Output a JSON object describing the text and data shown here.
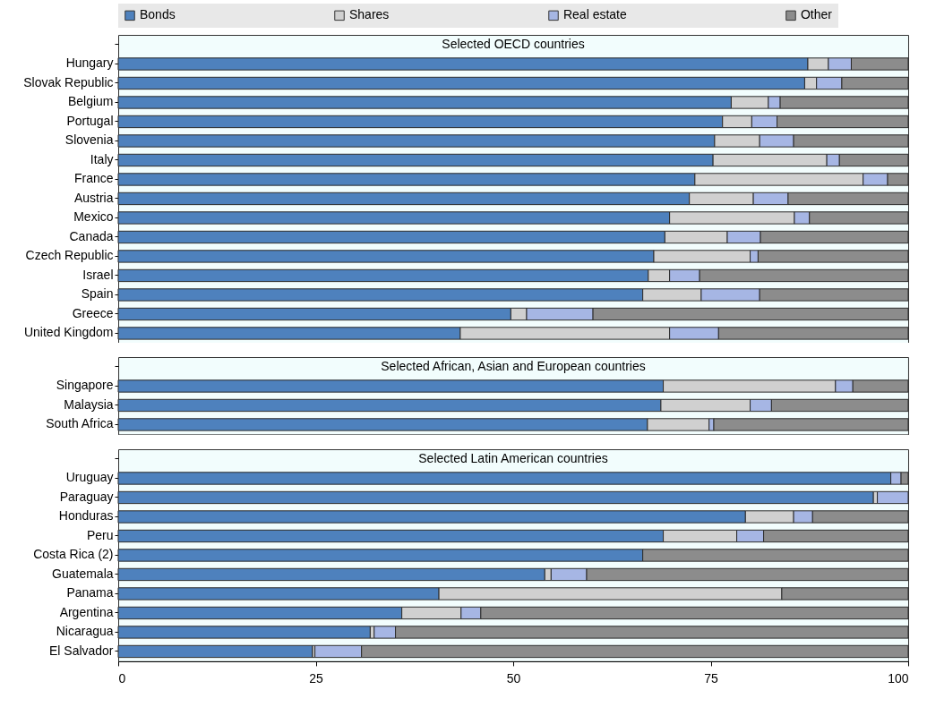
{
  "chart_data": [
    {
      "type": "bar",
      "orientation": "horizontal",
      "stacked": true,
      "title": "Selected OECD countries",
      "legend": "top",
      "tick_labels": "y",
      "xlim": [
        0,
        100
      ],
      "xticks": [
        0,
        25,
        50,
        75,
        100
      ],
      "categories": [
        "Hungary",
        "Slovak Republic",
        "Belgium",
        "Portugal",
        "Slovenia",
        "Italy",
        "France",
        "Austria",
        "Mexico",
        "Canada",
        "Czech Republic",
        "Israel",
        "Spain",
        "Greece",
        "United Kingdom"
      ],
      "series": [
        {
          "name": "Bonds",
          "color": "#4e81bd",
          "values": [
            87.3,
            86.9,
            77.6,
            76.5,
            75.5,
            75.3,
            73.0,
            72.3,
            69.8,
            69.2,
            67.8,
            67.1,
            66.4,
            49.7,
            43.3
          ]
        },
        {
          "name": "Shares",
          "color": "#d0d0d0",
          "values": [
            2.6,
            1.5,
            4.7,
            3.7,
            5.7,
            14.4,
            21.3,
            8.1,
            15.8,
            7.9,
            12.2,
            2.7,
            7.4,
            2.0,
            26.5
          ]
        },
        {
          "name": "Real estate",
          "color": "#a6b6e4",
          "values": [
            2.9,
            3.2,
            1.5,
            3.2,
            4.3,
            1.6,
            3.1,
            4.4,
            1.9,
            4.2,
            1.0,
            3.8,
            7.4,
            8.4,
            6.2
          ]
        },
        {
          "name": "Other",
          "color": "#8c8c8c",
          "values": [
            7.2,
            8.4,
            16.2,
            16.6,
            14.5,
            8.7,
            2.6,
            15.2,
            12.5,
            18.7,
            19.0,
            26.4,
            18.8,
            39.9,
            24.0
          ]
        }
      ]
    },
    {
      "type": "bar",
      "orientation": "horizontal",
      "stacked": true,
      "title": "Selected African, Asian and European countries",
      "tick_labels": "y",
      "xlim": [
        0,
        100
      ],
      "xticks": [
        0,
        25,
        50,
        75,
        100
      ],
      "categories": [
        "Singapore",
        "Malaysia",
        "South Africa"
      ],
      "series": [
        {
          "color": "#4e81bd",
          "values": [
            69.0,
            68.7,
            67.0
          ]
        },
        {
          "color": "#d0d0d0",
          "values": [
            21.8,
            11.3,
            7.8
          ]
        },
        {
          "color": "#a6b6e4",
          "values": [
            2.2,
            2.7,
            0.6
          ]
        },
        {
          "color": "#8c8c8c",
          "values": [
            7.0,
            17.3,
            24.6
          ]
        }
      ]
    },
    {
      "type": "bar",
      "orientation": "horizontal",
      "stacked": true,
      "title": "Selected Latin American countries",
      "xlim": [
        0,
        100
      ],
      "xticks": [
        0,
        25,
        50,
        75,
        100
      ],
      "categories": [
        "Uruguay",
        "Paraguay",
        "Honduras",
        "Peru",
        "Costa Rica (2)",
        "Guatemala",
        "Panama",
        "Argentina",
        "Nicaragua",
        "El Salvador"
      ],
      "series": [
        {
          "color": "#4e81bd",
          "values": [
            97.8,
            95.6,
            79.4,
            69.0,
            66.4,
            54.0,
            40.6,
            35.9,
            31.9,
            24.6
          ]
        },
        {
          "color": "#d0d0d0",
          "values": [
            0,
            0.5,
            6.1,
            9.3,
            0,
            0.8,
            43.4,
            7.5,
            0.5,
            0.3
          ]
        },
        {
          "color": "#a6b6e4",
          "values": [
            1.3,
            3.9,
            2.4,
            3.4,
            0,
            4.5,
            0,
            2.5,
            2.7,
            5.9
          ]
        },
        {
          "color": "#8c8c8c",
          "values": [
            0.9,
            0,
            12.1,
            18.3,
            33.6,
            40.7,
            16.0,
            54.1,
            64.9,
            69.2
          ]
        }
      ]
    }
  ]
}
